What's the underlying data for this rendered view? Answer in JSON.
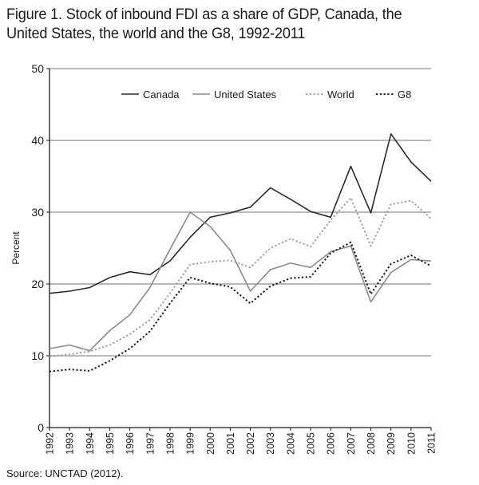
{
  "figure": {
    "title": "Figure 1. Stock of inbound FDI as a share of GDP, Canada, the United States, the world and the G8, 1992-2011",
    "source": "Source: UNCTAD (2012)."
  },
  "chart_data": {
    "type": "line",
    "title": "Figure 1. Stock of inbound FDI as a share of GDP, Canada, the United States, the world and the G8, 1992-2011",
    "xlabel": "",
    "ylabel": "Percent",
    "ylim": [
      0,
      50
    ],
    "yticks": [
      0,
      10,
      20,
      30,
      40,
      50
    ],
    "grid": true,
    "legend_position": "top",
    "x": [
      "1992",
      "1993",
      "1994",
      "1995",
      "1996",
      "1997",
      "1998",
      "1999",
      "2000",
      "2001",
      "2002",
      "2003",
      "2004",
      "2005",
      "2006",
      "2007",
      "2008",
      "2009",
      "2010",
      "2011"
    ],
    "series": [
      {
        "name": "Canada",
        "color": "#2b2b2b",
        "style": "solid",
        "values": [
          18.7,
          19.0,
          19.5,
          20.9,
          21.7,
          21.3,
          23.2,
          26.5,
          29.3,
          29.9,
          30.7,
          33.4,
          31.8,
          30.1,
          29.3,
          36.4,
          29.9,
          40.9,
          37.0,
          34.3
        ]
      },
      {
        "name": "United States",
        "color": "#8a8a8a",
        "style": "solid",
        "values": [
          11.0,
          11.5,
          10.7,
          13.5,
          15.7,
          19.5,
          24.8,
          30.0,
          28.0,
          24.7,
          19.0,
          22.0,
          22.9,
          22.3,
          24.5,
          25.3,
          17.5,
          21.6,
          23.4,
          23.2
        ]
      },
      {
        "name": "World",
        "color": "#a0a0a0",
        "style": "dotted",
        "values": [
          9.9,
          10.2,
          10.6,
          11.5,
          13.0,
          15.0,
          18.7,
          22.7,
          23.1,
          23.3,
          22.3,
          25.0,
          26.3,
          25.2,
          28.9,
          32.0,
          25.3,
          31.1,
          31.6,
          29.1
        ]
      },
      {
        "name": "G8",
        "color": "#1a1a1a",
        "style": "dotted",
        "values": [
          7.8,
          8.1,
          7.9,
          9.3,
          11.0,
          13.4,
          17.3,
          20.9,
          20.1,
          19.6,
          17.3,
          19.7,
          20.8,
          21.0,
          24.3,
          25.8,
          18.6,
          22.8,
          24.0,
          22.5
        ]
      }
    ]
  }
}
